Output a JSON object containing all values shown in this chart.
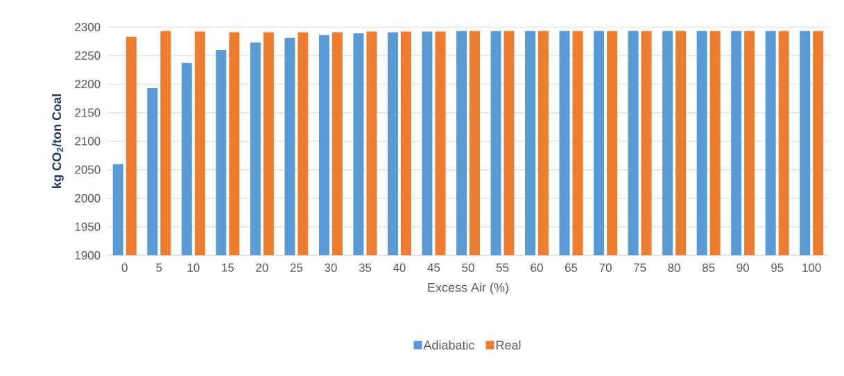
{
  "chart_data": {
    "type": "bar",
    "xlabel": "Excess Air (%)",
    "ylabel": "kg CO$_{2}$/ton Coal",
    "categories": [
      "0",
      "5",
      "10",
      "15",
      "20",
      "25",
      "30",
      "35",
      "40",
      "45",
      "50",
      "55",
      "60",
      "65",
      "70",
      "75",
      "80",
      "85",
      "90",
      "95",
      "100"
    ],
    "series": [
      {
        "name": "Adiabatic",
        "color": "#5b9bd5",
        "values": [
          2060,
          2193,
          2237,
          2260,
          2273,
          2281,
          2286,
          2289,
          2291,
          2292,
          2293,
          2293,
          2293,
          2293,
          2293,
          2293,
          2293,
          2293,
          2293,
          2293,
          2293
        ]
      },
      {
        "name": "Real",
        "color": "#ed7d31",
        "values": [
          2283,
          2293,
          2292,
          2291,
          2291,
          2291,
          2291,
          2292,
          2292,
          2292,
          2293,
          2293,
          2293,
          2293,
          2293,
          2293,
          2293,
          2293,
          2293,
          2293,
          2293
        ]
      }
    ],
    "ylim": [
      1900,
      2300
    ],
    "yticks": [
      1900,
      1950,
      2000,
      2050,
      2100,
      2150,
      2200,
      2250,
      2300
    ],
    "grid": "y",
    "legend": "bottom"
  }
}
